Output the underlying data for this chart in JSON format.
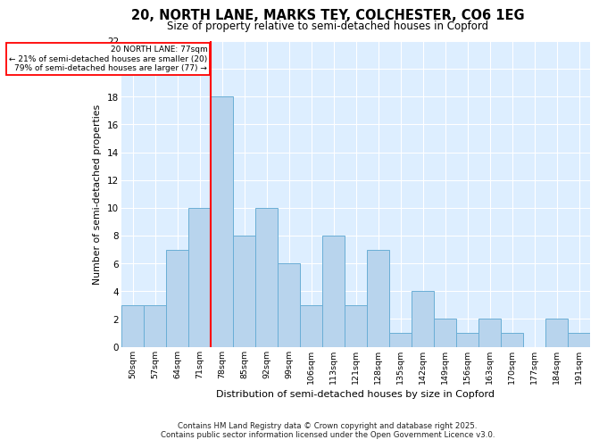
{
  "title_line1": "20, NORTH LANE, MARKS TEY, COLCHESTER, CO6 1EG",
  "title_line2": "Size of property relative to semi-detached houses in Copford",
  "xlabel": "Distribution of semi-detached houses by size in Copford",
  "ylabel": "Number of semi-detached properties",
  "categories": [
    "50sqm",
    "57sqm",
    "64sqm",
    "71sqm",
    "78sqm",
    "85sqm",
    "92sqm",
    "99sqm",
    "106sqm",
    "113sqm",
    "121sqm",
    "128sqm",
    "135sqm",
    "142sqm",
    "149sqm",
    "156sqm",
    "163sqm",
    "170sqm",
    "177sqm",
    "184sqm",
    "191sqm"
  ],
  "values": [
    3,
    3,
    7,
    10,
    18,
    8,
    10,
    6,
    3,
    8,
    3,
    7,
    1,
    4,
    2,
    1,
    2,
    1,
    0,
    2,
    1
  ],
  "bar_color": "#b8d4ed",
  "bar_edge_color": "#6aaed6",
  "red_line_index": 4,
  "annotation_title": "20 NORTH LANE: 77sqm",
  "annotation_line1": "← 21% of semi-detached houses are smaller (20)",
  "annotation_line2": "79% of semi-detached houses are larger (77) →",
  "ylim": [
    0,
    22
  ],
  "yticks": [
    0,
    2,
    4,
    6,
    8,
    10,
    12,
    14,
    16,
    18,
    20,
    22
  ],
  "background_color": "#ddeeff",
  "footer_line1": "Contains HM Land Registry data © Crown copyright and database right 2025.",
  "footer_line2": "Contains public sector information licensed under the Open Government Licence v3.0."
}
